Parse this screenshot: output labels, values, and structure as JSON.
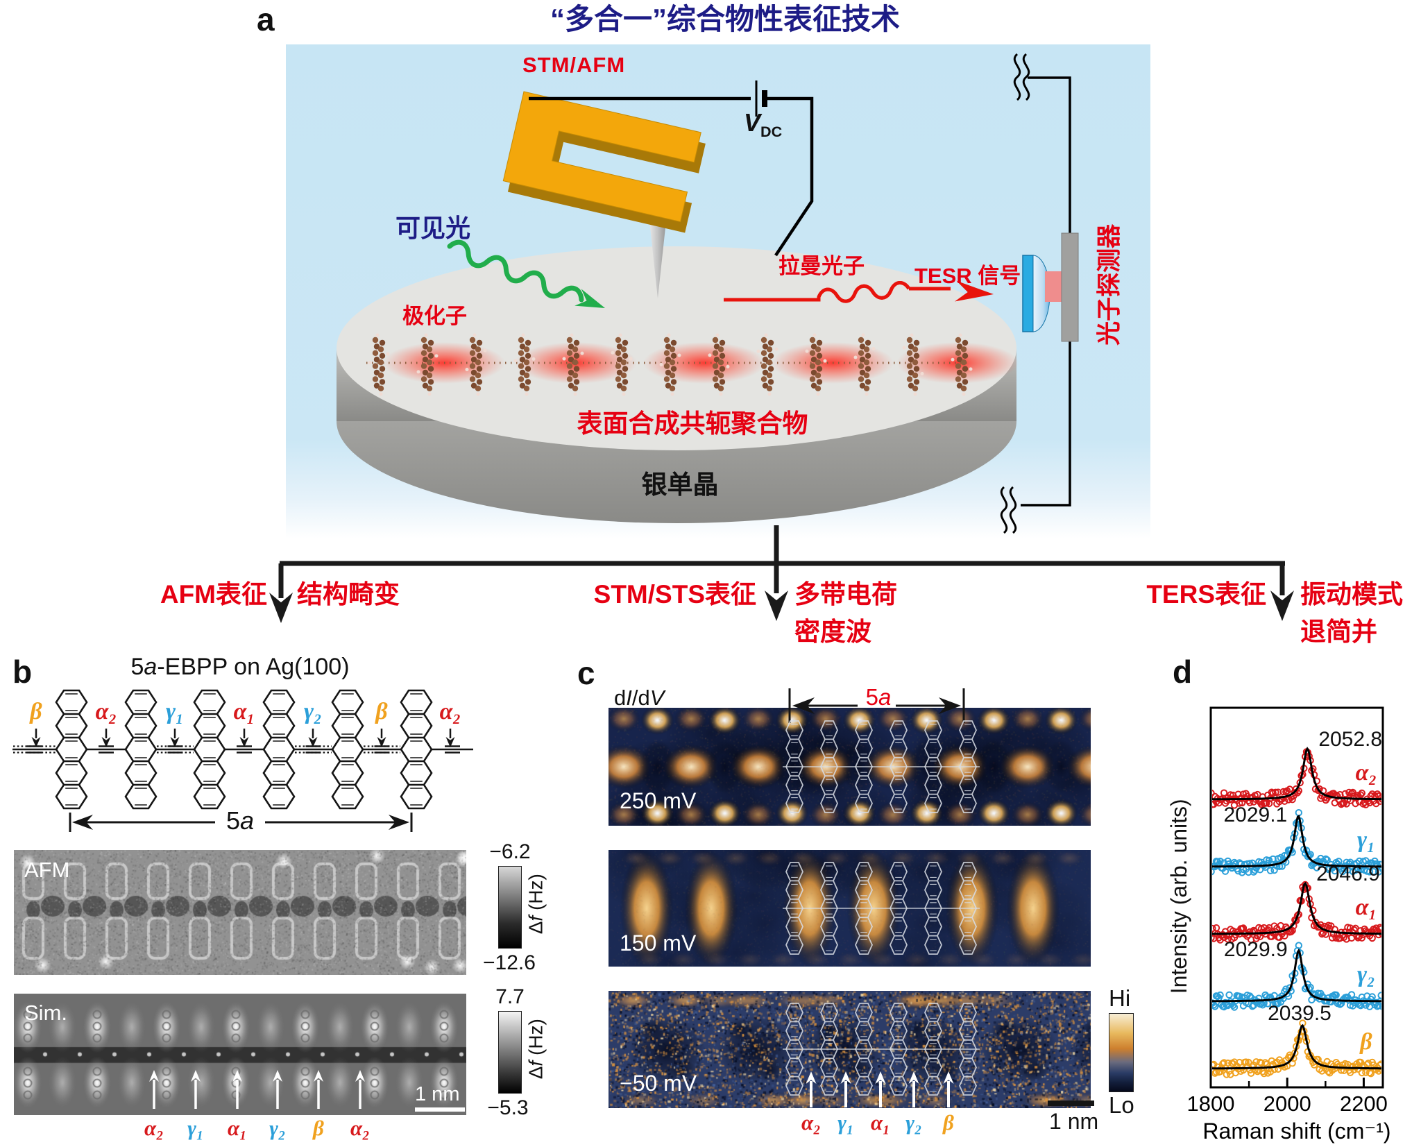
{
  "colors": {
    "accent_red": "#e60012",
    "navy_blue": "#1d1c86",
    "alpha_red": "#d7191c",
    "gamma_blue": "#2b9fd9",
    "beta_orange": "#f0a11e"
  },
  "panels": {
    "a": "a",
    "b": "b",
    "c": "c",
    "d": "d"
  },
  "panel_a": {
    "title": "“多合一”综合物性表征技术",
    "probe_label": "STM/AFM",
    "bias_symbol": "V",
    "bias_sub": "DC",
    "visible_light": "可见光",
    "polaron": "极化子",
    "raman_photon": "拉曼光子",
    "tesr_signal": "TESR 信号",
    "photon_detector": "光子探测器",
    "polymer": "表面合成共轭聚合物",
    "substrate": "银单晶"
  },
  "branches": {
    "afm": {
      "technique": "AFM表征",
      "result1": "结构畸变"
    },
    "stm": {
      "technique": "STM/STS表征",
      "result1": "多带电荷",
      "result2": "密度波"
    },
    "ters": {
      "technique": "TERS表征",
      "result1": "振动模式",
      "result2": "退简并"
    }
  },
  "panel_b": {
    "title_num": "5",
    "title_it": "a",
    "title_rest": "-EBPP on Ag(100)",
    "span_num": "5",
    "span_it": "a",
    "afm_tag": "AFM",
    "sim_tag": "Sim.",
    "afm_scale_max": "−6.2",
    "afm_scale_min": "−12.6",
    "sim_scale_max": "7.7",
    "sim_scale_min": "−5.3",
    "scale_unit_pre": "Δ",
    "scale_unit_it": "f",
    "scale_unit_post": " (Hz)",
    "scale_bar": "1 nm",
    "bond_labels": [
      {
        "text": "β",
        "color": "#f0a11e"
      },
      {
        "text": "α₂",
        "color": "#d7191c"
      },
      {
        "text": "γ₁",
        "color": "#2b9fd9"
      },
      {
        "text": "α₁",
        "color": "#d7191c"
      },
      {
        "text": "γ₂",
        "color": "#2b9fd9"
      },
      {
        "text": "β",
        "color": "#f0a11e"
      },
      {
        "text": "α₂",
        "color": "#d7191c"
      }
    ],
    "sim_arrow_labels": [
      {
        "text": "α₂",
        "color": "#d7191c"
      },
      {
        "text": "γ₁",
        "color": "#2b9fd9"
      },
      {
        "text": "α₁",
        "color": "#d7191c"
      },
      {
        "text": "γ₂",
        "color": "#2b9fd9"
      },
      {
        "text": "β",
        "color": "#f0a11e"
      },
      {
        "text": "α₂",
        "color": "#d7191c"
      }
    ]
  },
  "panel_c": {
    "map_d1": "d",
    "map_i": "I",
    "map_d2": "/d",
    "map_v": "V",
    "span_num": "5",
    "span_it": "a",
    "biases": [
      "250 mV",
      "150 mV",
      "−50 mV"
    ],
    "colorbar_hi": "Hi",
    "colorbar_lo": "Lo",
    "scale_bar": "1 nm",
    "arrow_labels": [
      {
        "text": "α₂",
        "color": "#d7191c"
      },
      {
        "text": "γ₁",
        "color": "#2b9fd9"
      },
      {
        "text": "α₁",
        "color": "#d7191c"
      },
      {
        "text": "γ₂",
        "color": "#2b9fd9"
      },
      {
        "text": "β",
        "color": "#f0a11e"
      }
    ]
  },
  "chart_data": {
    "type": "line",
    "xlabel": "Raman shift (cm⁻¹)",
    "ylabel": "Intensity (arb. units)",
    "xlim": [
      1800,
      2250
    ],
    "xticks": [
      1800,
      2000,
      2200
    ],
    "xticks_minor": [
      1900,
      2100
    ],
    "grid": false,
    "legend_position": "right-inline",
    "series": [
      {
        "name": "α₂",
        "color": "#d7191c",
        "peak_center": 2052.8,
        "peak_label": "2052.8",
        "label_side": "right",
        "fwhm": 28,
        "amplitude": 1.0,
        "style": "scatter+lorentzian-fit"
      },
      {
        "name": "γ₁",
        "color": "#2b9fd9",
        "peak_center": 2029.1,
        "peak_label": "2029.1",
        "label_side": "left",
        "fwhm": 26,
        "amplitude": 1.0,
        "style": "scatter+lorentzian-fit"
      },
      {
        "name": "α₁",
        "color": "#d7191c",
        "peak_center": 2046.9,
        "peak_label": "2046.9",
        "label_side": "right",
        "fwhm": 30,
        "amplitude": 1.0,
        "style": "scatter+lorentzian-fit"
      },
      {
        "name": "γ₂",
        "color": "#2b9fd9",
        "peak_center": 2029.9,
        "peak_label": "2029.9",
        "label_side": "left",
        "fwhm": 26,
        "amplitude": 1.0,
        "style": "scatter+lorentzian-fit"
      },
      {
        "name": "β",
        "color": "#f0a11e",
        "peak_center": 2039.5,
        "peak_label": "2039.5",
        "label_side": "center",
        "fwhm": 30,
        "amplitude": 0.85,
        "style": "scatter+lorentzian-fit"
      }
    ]
  }
}
